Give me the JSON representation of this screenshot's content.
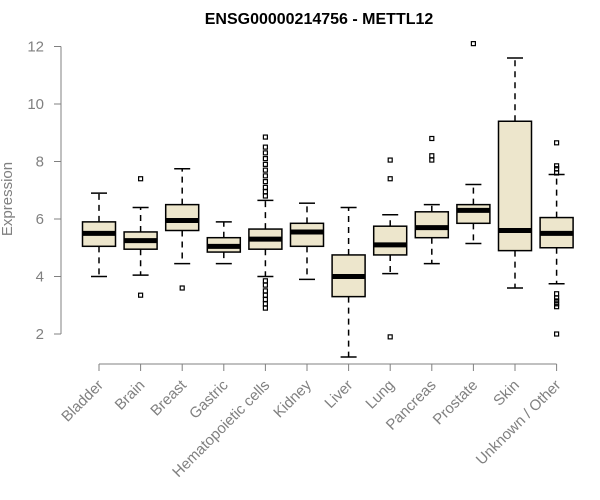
{
  "chart_data": {
    "type": "boxplot",
    "title": "ENSG00000214756 - METTL12",
    "xlabel": "",
    "ylabel": "Expression",
    "ylim": [
      1,
      12.4
    ],
    "yticks": [
      2,
      4,
      6,
      8,
      10,
      12
    ],
    "box_color": "#ede6cc",
    "categories": [
      "Bladder",
      "Brain",
      "Breast",
      "Gastric",
      "Hematopoietic cells",
      "Kidney",
      "Liver",
      "Lung",
      "Pancreas",
      "Prostate",
      "Skin",
      "Unknown / Other"
    ],
    "boxes": [
      {
        "category": "Bladder",
        "whisker_low": 4.0,
        "q1": 5.05,
        "median": 5.5,
        "q3": 5.9,
        "whisker_high": 6.9,
        "outliers": []
      },
      {
        "category": "Brain",
        "whisker_low": 4.05,
        "q1": 4.95,
        "median": 5.25,
        "q3": 5.55,
        "whisker_high": 6.4,
        "outliers": [
          7.4,
          3.35
        ]
      },
      {
        "category": "Breast",
        "whisker_low": 4.45,
        "q1": 5.6,
        "median": 5.95,
        "q3": 6.5,
        "whisker_high": 7.75,
        "outliers": [
          3.6
        ]
      },
      {
        "category": "Gastric",
        "whisker_low": 4.45,
        "q1": 4.85,
        "median": 5.05,
        "q3": 5.35,
        "whisker_high": 5.9,
        "outliers": []
      },
      {
        "category": "Hematopoietic cells",
        "whisker_low": 4.0,
        "q1": 4.95,
        "median": 5.3,
        "q3": 5.65,
        "whisker_high": 6.65,
        "outliers": [
          8.85,
          8.5,
          8.3,
          8.1,
          7.9,
          7.7,
          7.5,
          7.3,
          7.1,
          6.95,
          6.8,
          3.85,
          3.7,
          3.5,
          3.35,
          3.2,
          3.05,
          2.9
        ]
      },
      {
        "category": "Kidney",
        "whisker_low": 3.9,
        "q1": 5.05,
        "median": 5.55,
        "q3": 5.85,
        "whisker_high": 6.55,
        "outliers": []
      },
      {
        "category": "Liver",
        "whisker_low": 1.2,
        "q1": 3.3,
        "median": 4.0,
        "q3": 4.75,
        "whisker_high": 6.4,
        "outliers": []
      },
      {
        "category": "Lung",
        "whisker_low": 4.1,
        "q1": 4.75,
        "median": 5.1,
        "q3": 5.75,
        "whisker_high": 6.15,
        "outliers": [
          8.05,
          7.4,
          1.9
        ]
      },
      {
        "category": "Pancreas",
        "whisker_low": 4.45,
        "q1": 5.35,
        "median": 5.7,
        "q3": 6.25,
        "whisker_high": 6.5,
        "outliers": [
          8.8,
          8.2,
          8.05
        ]
      },
      {
        "category": "Prostate",
        "whisker_low": 5.15,
        "q1": 5.85,
        "median": 6.3,
        "q3": 6.5,
        "whisker_high": 7.2,
        "outliers": [
          12.1
        ]
      },
      {
        "category": "Skin",
        "whisker_low": 3.6,
        "q1": 4.9,
        "median": 5.6,
        "q3": 9.4,
        "whisker_high": 11.6,
        "outliers": []
      },
      {
        "category": "Unknown / Other",
        "whisker_low": 3.75,
        "q1": 5.0,
        "median": 5.5,
        "q3": 6.05,
        "whisker_high": 7.55,
        "outliers": [
          8.65,
          7.85,
          7.75,
          7.6,
          3.4,
          3.25,
          3.15,
          3.05,
          2.95,
          2.0
        ]
      }
    ]
  }
}
